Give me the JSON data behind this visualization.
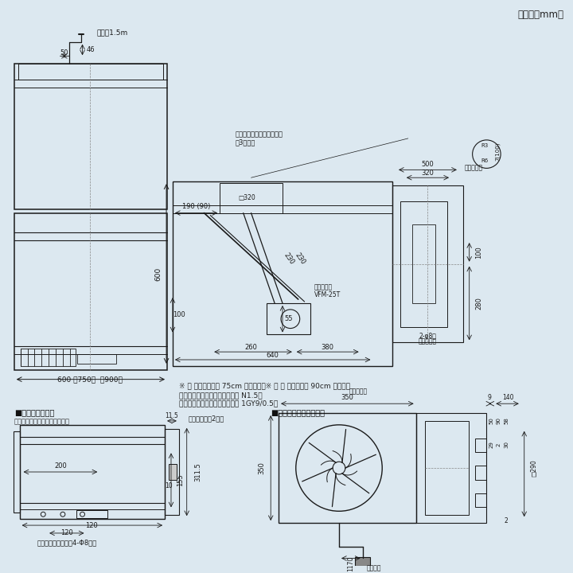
{
  "bg_color": "#dce8f0",
  "line_color": "#1a1a1a",
  "unit_text": "（単位：mm）",
  "note1": "※ ［ ］内の寸法は 75cm 巾タイプ　※ （ ） 内の寸法は 90cm 巾タイプ",
  "note2": "色調：ブラック塗装（マンセル N1.5）",
  "note3": "　　　ホワイト塗装（マンセル 1GY9/0.5）",
  "section1_title": "■取付寸法詳細図",
  "section1_sub": "（化粧枠を外した状態を示す）",
  "section2_title": "■同梱換気扇（不燃形）"
}
